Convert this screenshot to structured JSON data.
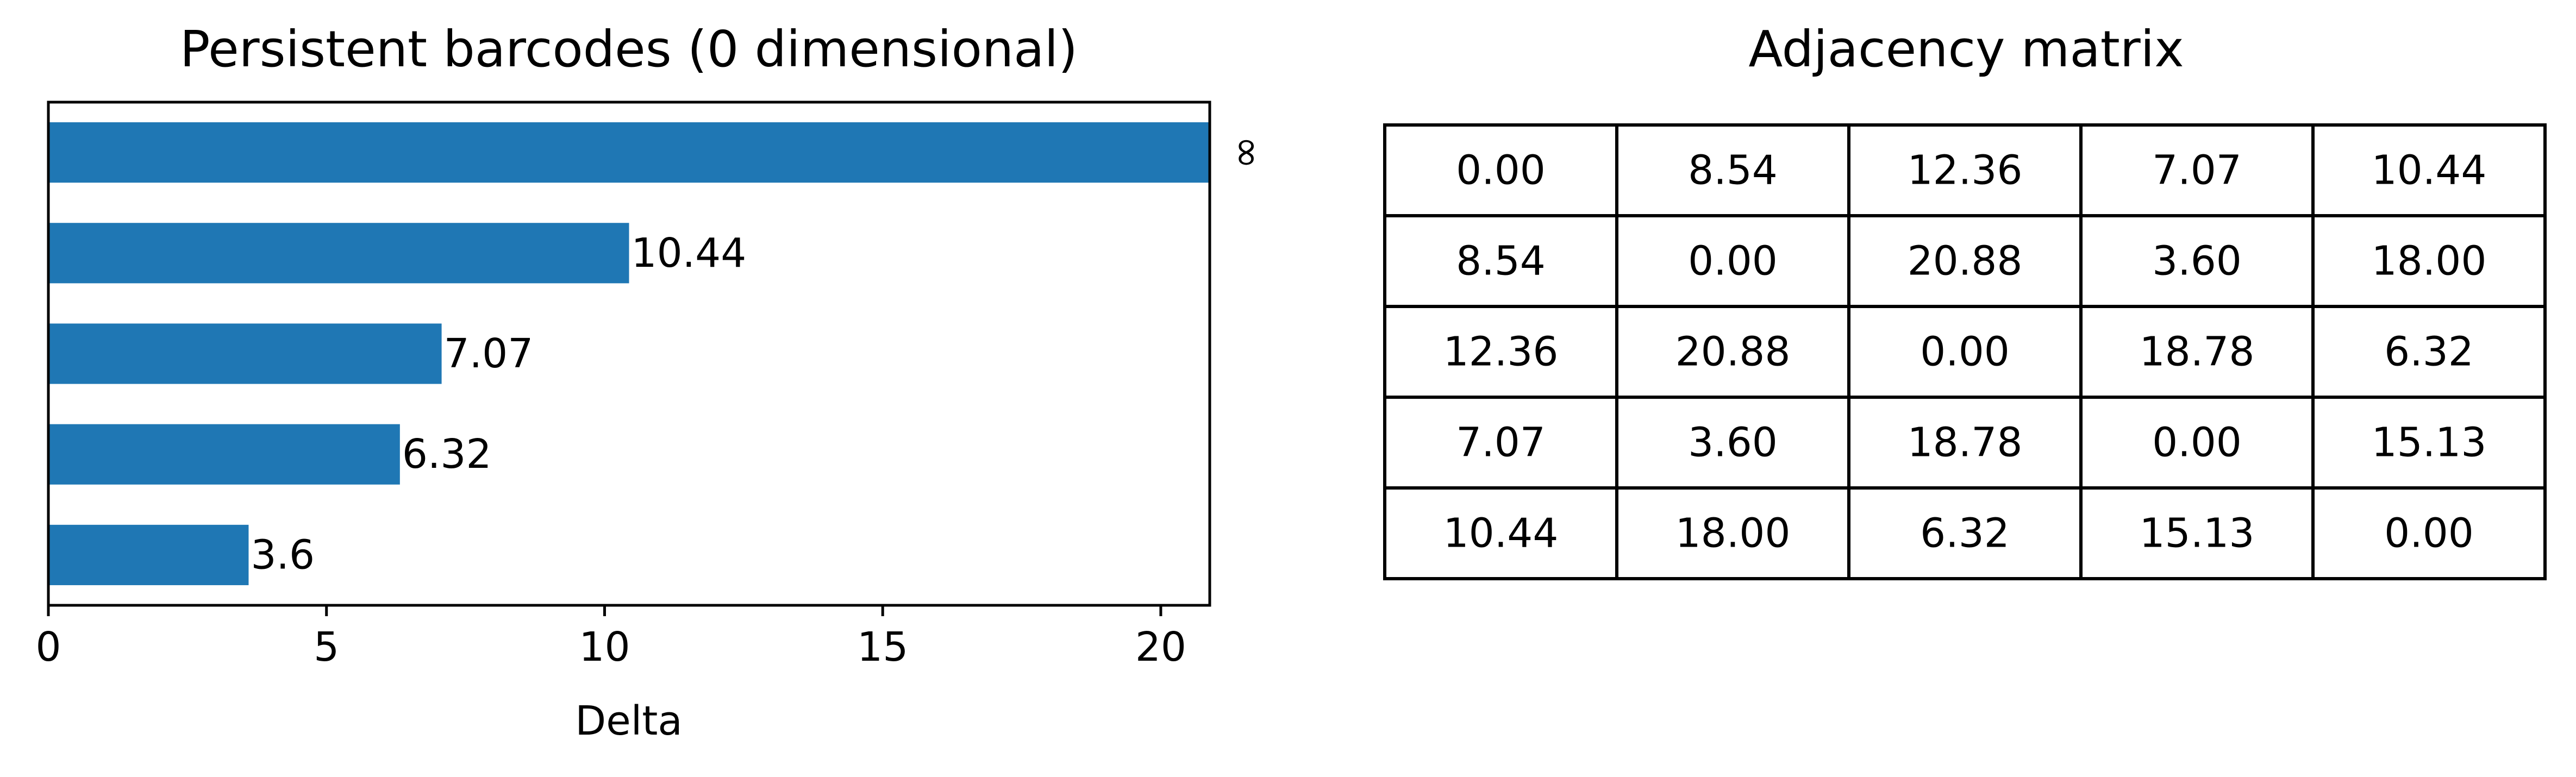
{
  "chart_data": [
    {
      "type": "bar",
      "orientation": "horizontal",
      "title": "Persistent barcodes (0 dimensional)",
      "xlabel": "Delta",
      "ylabel": "",
      "xlim": [
        0,
        20.88
      ],
      "xticks": [
        0,
        5,
        10,
        15,
        20
      ],
      "ytick_labels": "none",
      "grid": false,
      "color": "#1f77b4",
      "bars": [
        {
          "value": 20.88,
          "label": "∞"
        },
        {
          "value": 10.44,
          "label": "10.44"
        },
        {
          "value": 7.07,
          "label": "7.07"
        },
        {
          "value": 6.32,
          "label": "6.32"
        },
        {
          "value": 3.6,
          "label": "3.6"
        }
      ]
    },
    {
      "type": "table",
      "title": "Adjacency matrix",
      "rows": [
        [
          "0.00",
          "8.54",
          "12.36",
          "7.07",
          "10.44"
        ],
        [
          "8.54",
          "0.00",
          "20.88",
          "3.60",
          "18.00"
        ],
        [
          "12.36",
          "20.88",
          "0.00",
          "18.78",
          "6.32"
        ],
        [
          "7.07",
          "3.60",
          "18.78",
          "0.00",
          "15.13"
        ],
        [
          "10.44",
          "18.00",
          "6.32",
          "15.13",
          "0.00"
        ]
      ]
    }
  ]
}
